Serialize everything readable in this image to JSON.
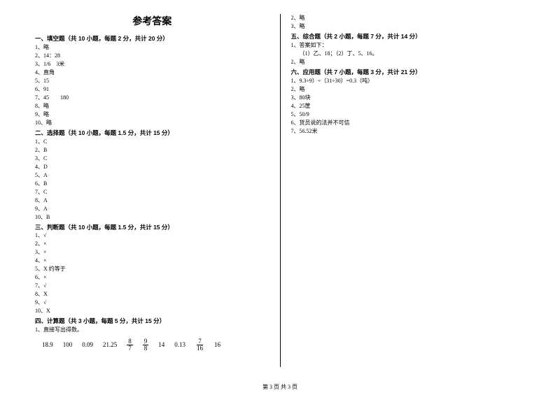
{
  "title": "参考答案",
  "footer": "第 3 页 共 3 页",
  "left": {
    "sec1": {
      "header": "一、填空题（共 10 小题，每题 2 分，共计 20 分）",
      "items": [
        "1、略",
        "2、14：28",
        "3、1/6　3米",
        "4、直角",
        "5、15",
        "6、91",
        "7、45　　180",
        "8、略",
        "9、略",
        "10、略"
      ]
    },
    "sec2": {
      "header": "二、选择题（共 10 小题，每题 1.5 分，共计 15 分）",
      "items": [
        "1、C",
        "2、B",
        "3、C",
        "4、D",
        "5、A",
        "6、B",
        "7、C",
        "8、A",
        "9、A",
        "10、B"
      ]
    },
    "sec3": {
      "header": "三、判断题（共 10 小题，每题 1.5 分，共计 15 分）",
      "items": [
        "1、√",
        "2、×",
        "3、×",
        "4、×",
        "5、X 约等于",
        "6、×",
        "7、√",
        "8、X",
        "9、√",
        "10、X"
      ]
    },
    "sec4": {
      "header": "四、计算题（共 3 小题，每题 5 分，共计 15 分）",
      "items": [
        "1、直接写出得数。"
      ],
      "calc": [
        "18.9",
        "100",
        "0.09",
        "21.25",
        "8/7",
        "9/8",
        "14",
        "0.13",
        "7/16",
        "16"
      ]
    }
  },
  "right": {
    "cont4": [
      "2、略",
      "3、略"
    ],
    "sec5": {
      "header": "五、综合题（共 2 小题，每题 7 分，共计 14 分）",
      "items": [
        "1、答案如下：",
        "　　（1）乙、18；（2）丁、5、16。",
        "2、略"
      ]
    },
    "sec6": {
      "header": "六、应用题（共 7 小题，每题 3 分，共计 21 分）",
      "items": [
        "1、9.3÷9）÷（31÷30）=0.3（吨）",
        "2、略",
        "3、80块",
        "4、25筐",
        "5、50/9",
        "6、货员说的法并不可信",
        "7、56.52米"
      ]
    }
  }
}
